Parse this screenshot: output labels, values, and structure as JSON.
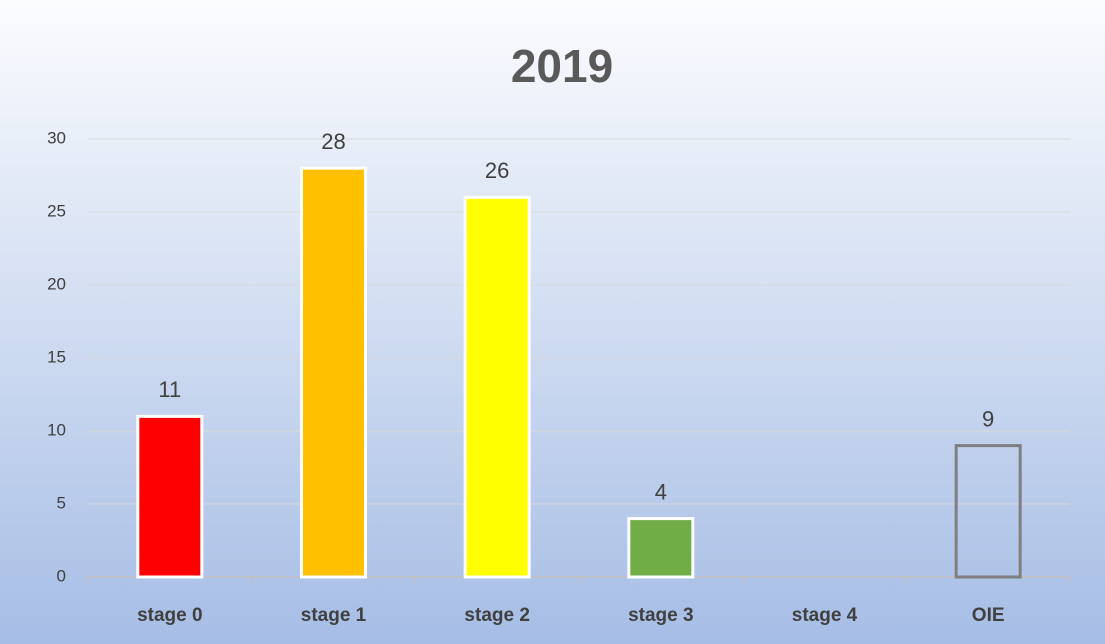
{
  "chart_data": {
    "type": "bar",
    "title": "2019",
    "categories": [
      "stage 0",
      "stage 1",
      "stage 2",
      "stage 3",
      "stage 4",
      "OIE"
    ],
    "values": [
      11,
      28,
      26,
      4,
      null,
      9
    ],
    "colors": [
      "#ff0000",
      "#ffc000",
      "#ffff00",
      "#70ad47",
      null,
      "none"
    ],
    "edgecolors": [
      "#ffffff",
      "#ffffff",
      "#ffffff",
      "#ffffff",
      null,
      "#7f7f7f"
    ],
    "ylim": [
      0,
      30
    ],
    "yticks": [
      0,
      5,
      10,
      15,
      20,
      25,
      30
    ],
    "grid": true
  }
}
